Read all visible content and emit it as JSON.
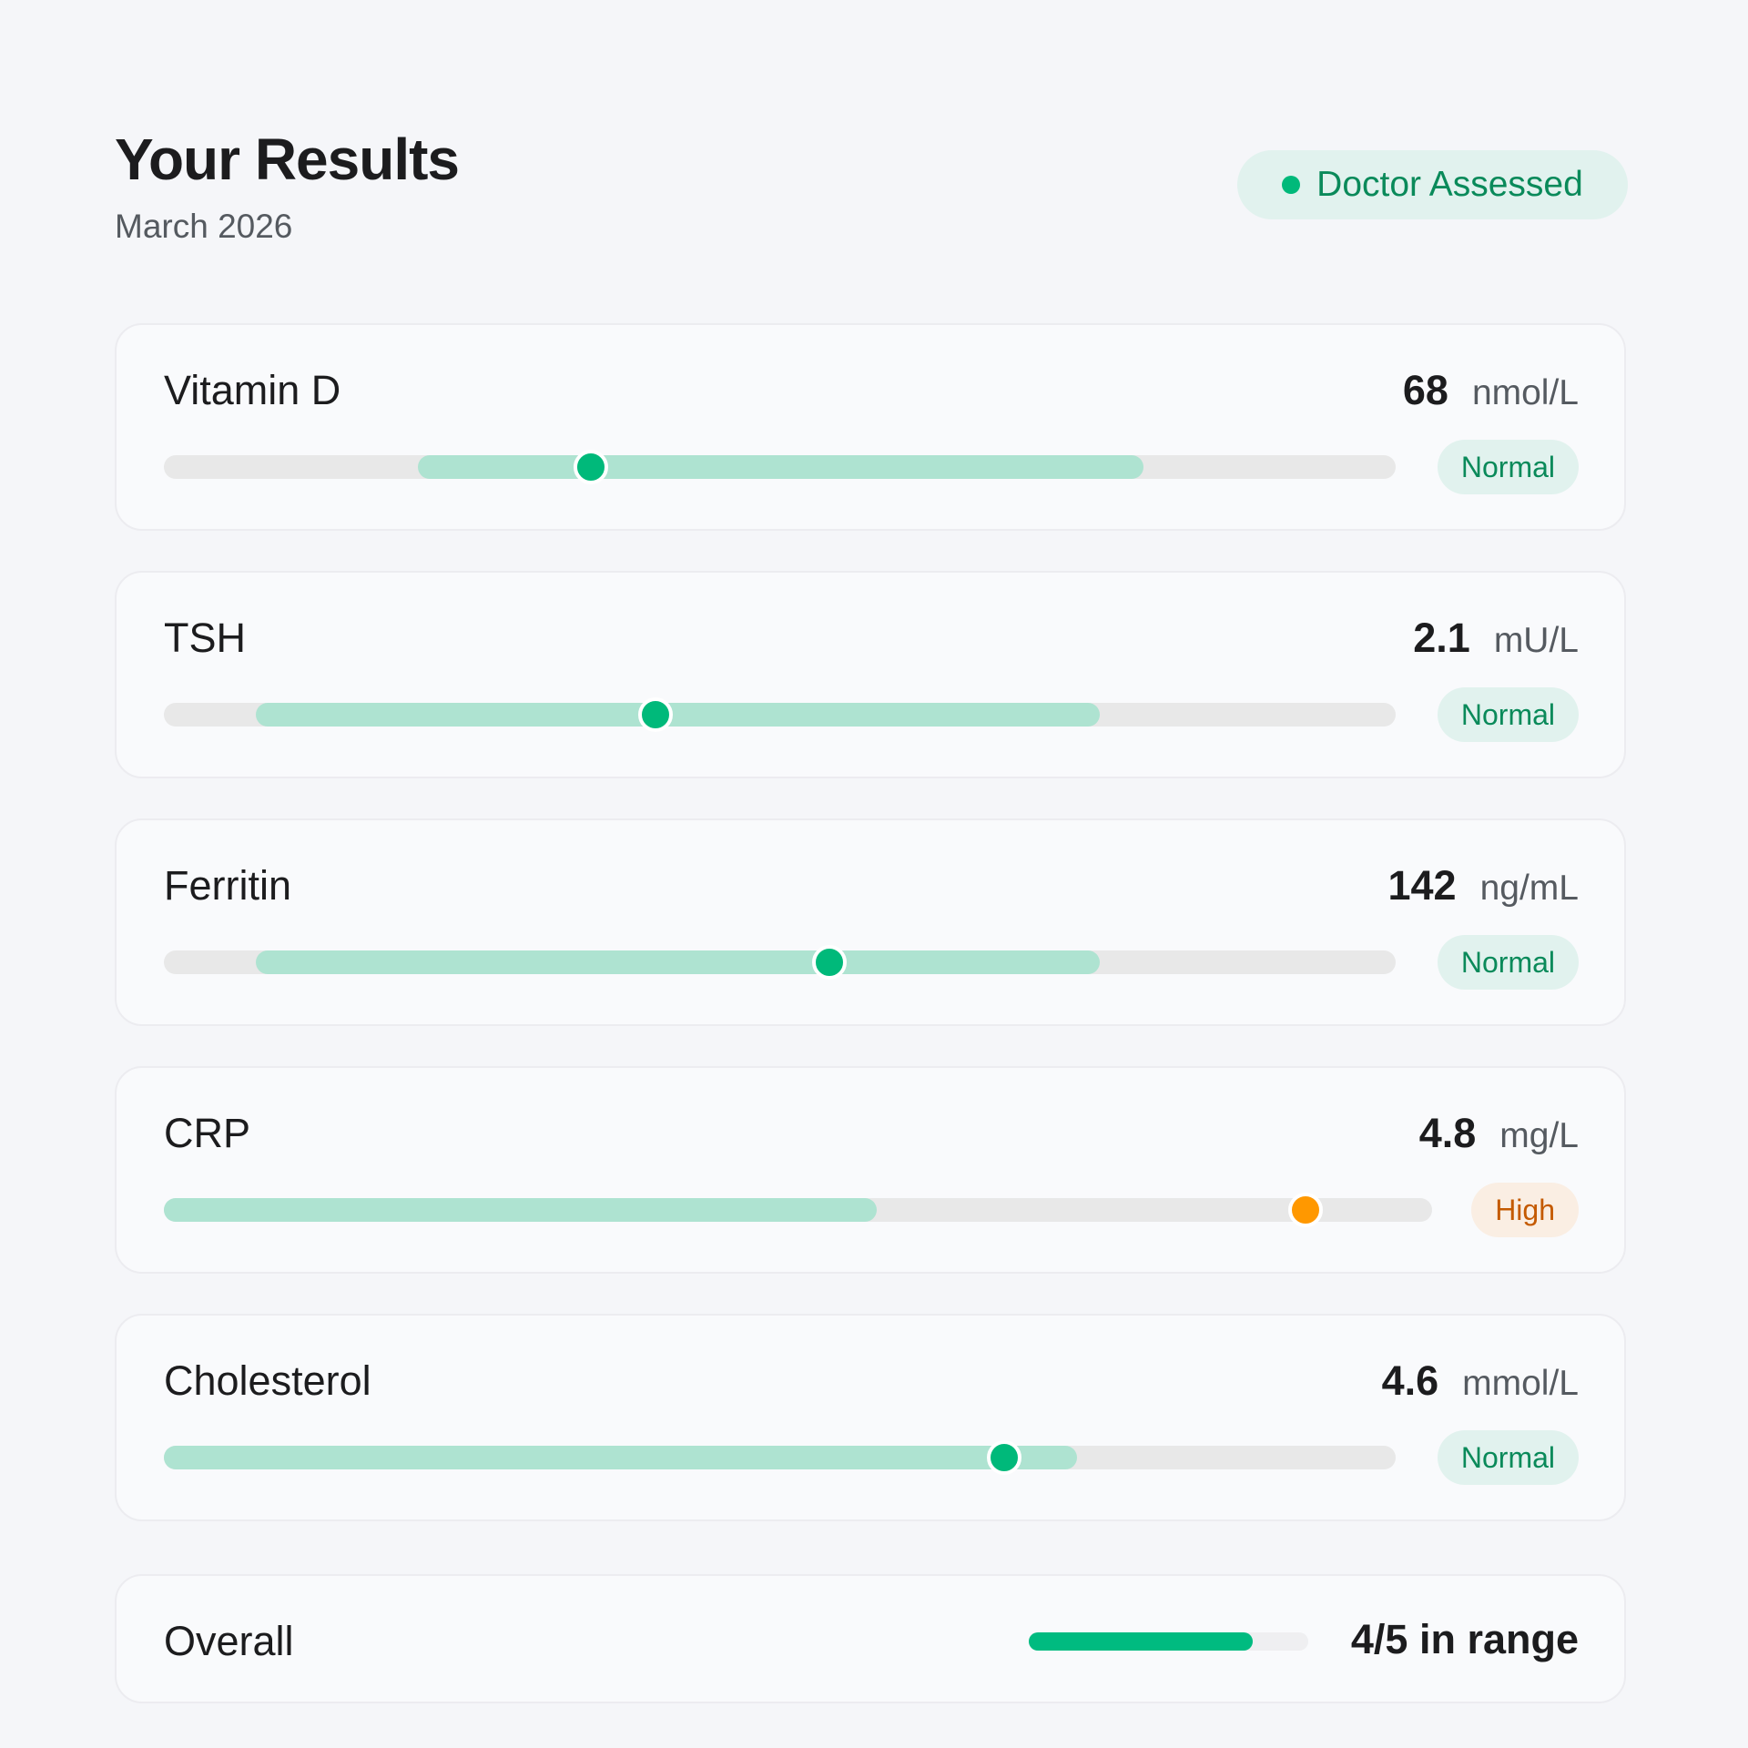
{
  "header": {
    "title": "Your Results",
    "subtitle": "March 2026",
    "badge": "Doctor Assessed"
  },
  "colors": {
    "normal_marker": "#00b97a",
    "high_marker": "#ff9800",
    "range_fill": "#aee3d1",
    "normal_badge_bg": "#e1f2ee",
    "normal_badge_text": "#0a8a5a",
    "high_badge_bg": "#faeee3",
    "high_badge_text": "#c45a00"
  },
  "results": [
    {
      "name": "Vitamin D",
      "value": "68",
      "unit": "nmol/L",
      "status": "Normal",
      "range_pct": [
        20.6,
        79.5
      ],
      "marker_pct": 34.7
    },
    {
      "name": "TSH",
      "value": "2.1",
      "unit": "mU/L",
      "status": "Normal",
      "range_pct": [
        7.5,
        76
      ],
      "marker_pct": 39.9
    },
    {
      "name": "Ferritin",
      "value": "142",
      "unit": "ng/mL",
      "status": "Normal",
      "range_pct": [
        7.5,
        76
      ],
      "marker_pct": 54.0
    },
    {
      "name": "CRP",
      "value": "4.8",
      "unit": "mg/L",
      "status": "High",
      "range_pct": [
        0,
        56.2
      ],
      "marker_pct": 90.0
    },
    {
      "name": "Cholesterol",
      "value": "4.6",
      "unit": "mmol/L",
      "status": "Normal",
      "range_pct": [
        0,
        74.1
      ],
      "marker_pct": 68.2
    }
  ],
  "overall": {
    "label": "Overall",
    "text": "4/5 in range",
    "fraction": 0.8
  }
}
